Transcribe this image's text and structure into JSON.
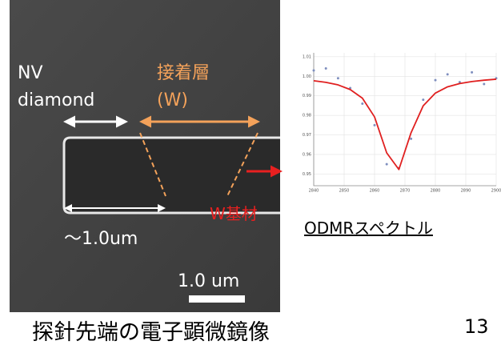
{
  "labels": {
    "nv_line1": "NV",
    "nv_line2": "diamond",
    "adhesive_line1": "接着層",
    "adhesive_line2": "(W)",
    "length": "〜1.0um",
    "scale_bar": "1.0 um",
    "substrate": "W基材",
    "spectrum_caption": "ODMRスペクトル",
    "figure_caption": "探針先端の電子顕微鏡像",
    "page_number": "13"
  },
  "chart_data": {
    "type": "line",
    "x": [
      2840,
      2844,
      2848,
      2852,
      2856,
      2860,
      2864,
      2868,
      2872,
      2876,
      2880,
      2884,
      2888,
      2892,
      2896,
      2900
    ],
    "series": [
      {
        "color": "#7f8fbf",
        "style": "markers",
        "values": [
          1.003,
          1.004,
          0.999,
          0.994,
          0.986,
          0.975,
          0.955,
          0.953,
          0.968,
          0.988,
          0.998,
          1.001,
          0.997,
          1.002,
          0.996,
          0.999
        ]
      },
      {
        "color": "#e02020",
        "style": "line",
        "values": [
          0.9977,
          0.9969,
          0.9956,
          0.9932,
          0.9888,
          0.9792,
          0.9608,
          0.9523,
          0.9711,
          0.9849,
          0.9914,
          0.9946,
          0.9963,
          0.9973,
          0.998,
          0.9985
        ]
      }
    ],
    "xlim": [
      2840,
      2900
    ],
    "ylim": [
      0.944,
      1.012
    ],
    "xticks": [
      2840,
      2850,
      2860,
      2870,
      2880,
      2890,
      2900
    ],
    "yticks": [
      1.01,
      {
        "value": 1,
        "label": "1.00"
      },
      0.99,
      0.98,
      0.97,
      0.96,
      0.95
    ],
    "grid": true
  }
}
